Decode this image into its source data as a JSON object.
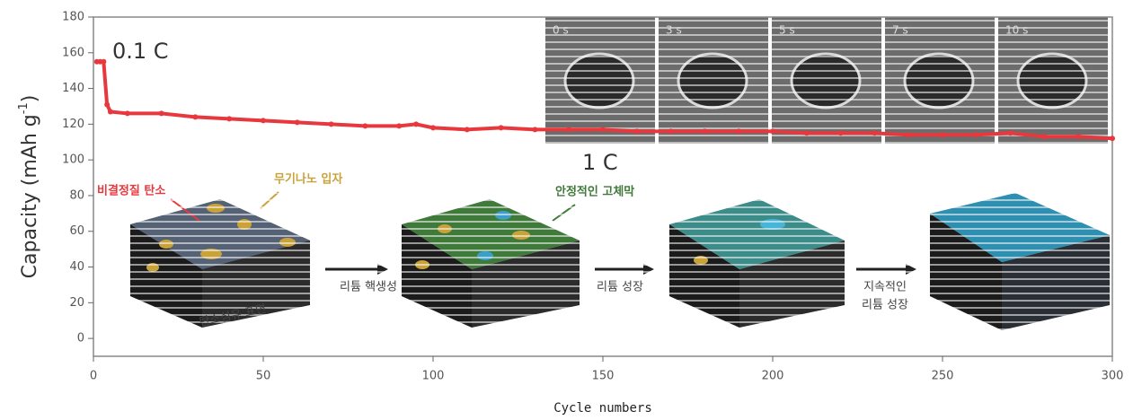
{
  "chart_data": {
    "type": "line",
    "xlabel": "Cycle numbers",
    "ylabel": [
      "Capacity (mAh g",
      "-1",
      ")"
    ],
    "x": [
      1,
      2,
      3,
      4,
      5,
      10,
      20,
      30,
      40,
      50,
      60,
      70,
      80,
      90,
      95,
      100,
      110,
      120,
      130,
      140,
      150,
      160,
      170,
      180,
      190,
      200,
      210,
      220,
      230,
      240,
      250,
      260,
      270,
      280,
      290,
      300
    ],
    "series": [
      {
        "color": "#e8383d",
        "values": [
          155,
          155,
          155,
          131,
          127,
          126,
          126,
          124,
          123,
          122,
          121,
          120,
          119,
          119,
          120,
          118,
          117,
          118,
          117,
          117,
          117,
          116,
          116,
          116,
          116,
          116,
          115,
          115,
          115,
          114,
          114,
          114,
          115,
          113,
          113,
          112
        ]
      }
    ],
    "xlim": [
      0,
      300
    ],
    "xticks": [
      0,
      50,
      100,
      150,
      200,
      250,
      300
    ],
    "ylim": [
      -10,
      180
    ],
    "yticks": [
      0,
      20,
      40,
      60,
      80,
      100,
      120,
      140,
      160,
      180
    ],
    "annotations": {
      "rate_low": "0.1 C",
      "rate_high": "1 C",
      "amorphous_carbon": "비결정질 탄소",
      "inorganic_nanoparticles": "무기나노 입자",
      "stable_sei": "안정적인 고체막",
      "carbon_fiber_surface": "탄소섬유 표면",
      "nucleation": "리튬 핵생성",
      "growth": "리튬 성장",
      "continuous_growth": [
        "지속적인",
        "리튬 성장"
      ]
    },
    "inset_times": [
      "0 s",
      "3 s",
      "5 s",
      "7 s",
      "10 s"
    ]
  }
}
